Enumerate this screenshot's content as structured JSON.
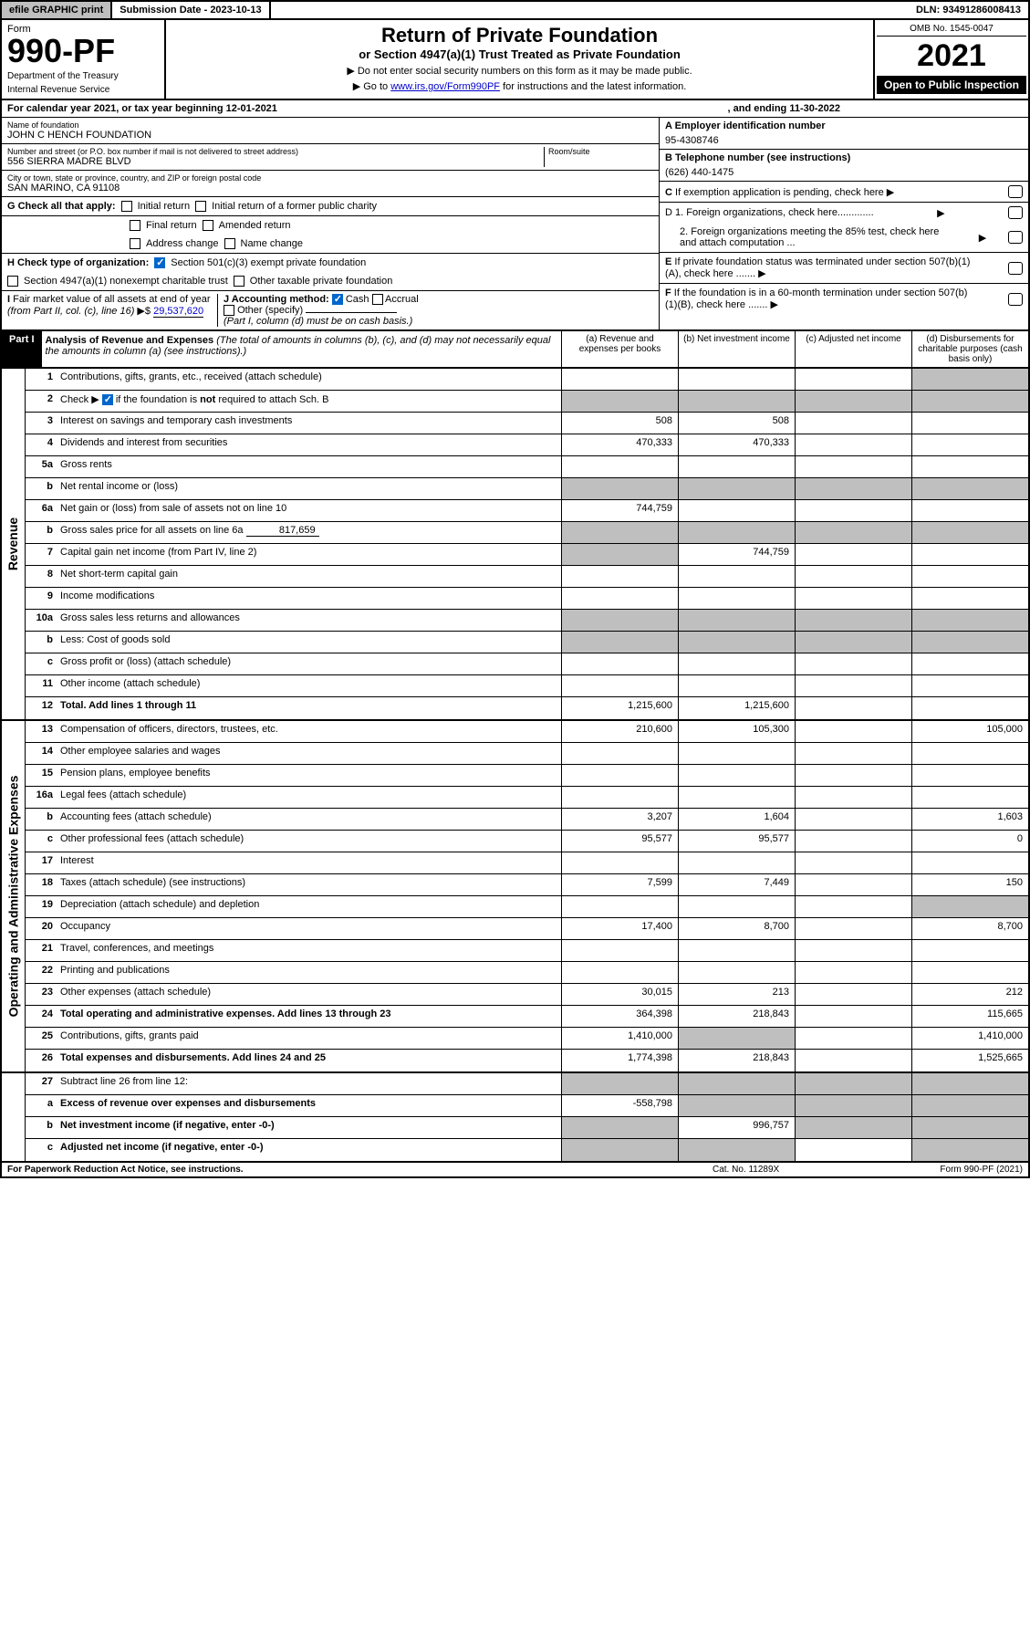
{
  "topbar": {
    "efile": "efile GRAPHIC print",
    "sub_label": "Submission Date - 2023-10-13",
    "dln": "DLN: 93491286008413"
  },
  "header": {
    "form": "Form",
    "form_num": "990-PF",
    "dept1": "Department of the Treasury",
    "dept2": "Internal Revenue Service",
    "title": "Return of Private Foundation",
    "subtitle": "or Section 4947(a)(1) Trust Treated as Private Foundation",
    "arrow1": "▶ Do not enter social security numbers on this form as it may be made public.",
    "arrow2_pre": "▶ Go to ",
    "arrow2_link": "www.irs.gov/Form990PF",
    "arrow2_post": " for instructions and the latest information.",
    "omb": "OMB No. 1545-0047",
    "year": "2021",
    "open": "Open to Public Inspection"
  },
  "calendar": {
    "text_a": "For calendar year 2021, or tax year beginning 12-01-2021",
    "text_b": ", and ending 11-30-2022"
  },
  "info": {
    "name_label": "Name of foundation",
    "name": "JOHN C HENCH FOUNDATION",
    "addr_label": "Number and street (or P.O. box number if mail is not delivered to street address)",
    "addr": "556 SIERRA MADRE BLVD",
    "room_label": "Room/suite",
    "city_label": "City or town, state or province, country, and ZIP or foreign postal code",
    "city": "SAN MARINO, CA  91108",
    "ein_label": "A Employer identification number",
    "ein": "95-4308746",
    "phone_label": "B Telephone number (see instructions)",
    "phone": "(626) 440-1475",
    "c_label": "C If exemption application is pending, check here",
    "d1_label": "D 1. Foreign organizations, check here.............",
    "d2_label": "2. Foreign organizations meeting the 85% test, check here and attach computation ...",
    "e_label": "E If private foundation status was terminated under section 507(b)(1)(A), check here .......",
    "f_label": "F If the foundation is in a 60-month termination under section 507(b)(1)(B), check here .......",
    "g_label": "G Check all that apply:",
    "g_initial": "Initial return",
    "g_initial_former": "Initial return of a former public charity",
    "g_final": "Final return",
    "g_amended": "Amended return",
    "g_address": "Address change",
    "g_name": "Name change",
    "h_label": "H Check type of organization:",
    "h_501c3": "Section 501(c)(3) exempt private foundation",
    "h_4947": "Section 4947(a)(1) nonexempt charitable trust",
    "h_other": "Other taxable private foundation",
    "i_label": "I Fair market value of all assets at end of year (from Part II, col. (c), line 16)",
    "i_value": "29,537,620",
    "j_label": "J Accounting method:",
    "j_cash": "Cash",
    "j_accrual": "Accrual",
    "j_other": "Other (specify)",
    "j_note": "(Part I, column (d) must be on cash basis.)"
  },
  "part1": {
    "label": "Part I",
    "title": "Analysis of Revenue and Expenses",
    "title_note": "(The total of amounts in columns (b), (c), and (d) may not necessarily equal the amounts in column (a) (see instructions).)",
    "col_a": "(a) Revenue and expenses per books",
    "col_b": "(b) Net investment income",
    "col_c": "(c) Adjusted net income",
    "col_d": "(d) Disbursements for charitable purposes (cash basis only)"
  },
  "side_rev": "Revenue",
  "side_exp": "Operating and Administrative Expenses",
  "rows_rev": [
    {
      "n": "1",
      "d": "Contributions, gifts, grants, etc., received (attach schedule)"
    },
    {
      "n": "2",
      "d": "Check ▶ ☑ if the foundation is not required to attach Sch. B"
    },
    {
      "n": "3",
      "d": "Interest on savings and temporary cash investments",
      "a": "508",
      "b": "508"
    },
    {
      "n": "4",
      "d": "Dividends and interest from securities",
      "a": "470,333",
      "b": "470,333"
    },
    {
      "n": "5a",
      "d": "Gross rents"
    },
    {
      "n": "b",
      "d": "Net rental income or (loss)"
    },
    {
      "n": "6a",
      "d": "Net gain or (loss) from sale of assets not on line 10",
      "a": "744,759"
    },
    {
      "n": "b",
      "d": "Gross sales price for all assets on line 6a",
      "inline": "817,659"
    },
    {
      "n": "7",
      "d": "Capital gain net income (from Part IV, line 2)",
      "b": "744,759"
    },
    {
      "n": "8",
      "d": "Net short-term capital gain"
    },
    {
      "n": "9",
      "d": "Income modifications"
    },
    {
      "n": "10a",
      "d": "Gross sales less returns and allowances"
    },
    {
      "n": "b",
      "d": "Less: Cost of goods sold"
    },
    {
      "n": "c",
      "d": "Gross profit or (loss) (attach schedule)"
    },
    {
      "n": "11",
      "d": "Other income (attach schedule)"
    },
    {
      "n": "12",
      "d": "Total. Add lines 1 through 11",
      "bold": true,
      "a": "1,215,600",
      "b": "1,215,600"
    }
  ],
  "rows_exp": [
    {
      "n": "13",
      "d": "Compensation of officers, directors, trustees, etc.",
      "a": "210,600",
      "b": "105,300",
      "dd": "105,000"
    },
    {
      "n": "14",
      "d": "Other employee salaries and wages"
    },
    {
      "n": "15",
      "d": "Pension plans, employee benefits"
    },
    {
      "n": "16a",
      "d": "Legal fees (attach schedule)"
    },
    {
      "n": "b",
      "d": "Accounting fees (attach schedule)",
      "a": "3,207",
      "b": "1,604",
      "dd": "1,603"
    },
    {
      "n": "c",
      "d": "Other professional fees (attach schedule)",
      "a": "95,577",
      "b": "95,577",
      "dd": "0"
    },
    {
      "n": "17",
      "d": "Interest"
    },
    {
      "n": "18",
      "d": "Taxes (attach schedule) (see instructions)",
      "a": "7,599",
      "b": "7,449",
      "dd": "150"
    },
    {
      "n": "19",
      "d": "Depreciation (attach schedule) and depletion"
    },
    {
      "n": "20",
      "d": "Occupancy",
      "a": "17,400",
      "b": "8,700",
      "dd": "8,700"
    },
    {
      "n": "21",
      "d": "Travel, conferences, and meetings"
    },
    {
      "n": "22",
      "d": "Printing and publications"
    },
    {
      "n": "23",
      "d": "Other expenses (attach schedule)",
      "a": "30,015",
      "b": "213",
      "dd": "212"
    },
    {
      "n": "24",
      "d": "Total operating and administrative expenses. Add lines 13 through 23",
      "bold": true,
      "a": "364,398",
      "b": "218,843",
      "dd": "115,665"
    },
    {
      "n": "25",
      "d": "Contributions, gifts, grants paid",
      "a": "1,410,000",
      "dd": "1,410,000"
    },
    {
      "n": "26",
      "d": "Total expenses and disbursements. Add lines 24 and 25",
      "bold": true,
      "a": "1,774,398",
      "b": "218,843",
      "dd": "1,525,665"
    }
  ],
  "rows_bot": [
    {
      "n": "27",
      "d": "Subtract line 26 from line 12:"
    },
    {
      "n": "a",
      "d": "Excess of revenue over expenses and disbursements",
      "bold": true,
      "a": "-558,798"
    },
    {
      "n": "b",
      "d": "Net investment income (if negative, enter -0-)",
      "bold": true,
      "b": "996,757"
    },
    {
      "n": "c",
      "d": "Adjusted net income (if negative, enter -0-)",
      "bold": true
    }
  ],
  "footer": {
    "left": "For Paperwork Reduction Act Notice, see instructions.",
    "mid": "Cat. No. 11289X",
    "right": "Form 990-PF (2021)"
  }
}
